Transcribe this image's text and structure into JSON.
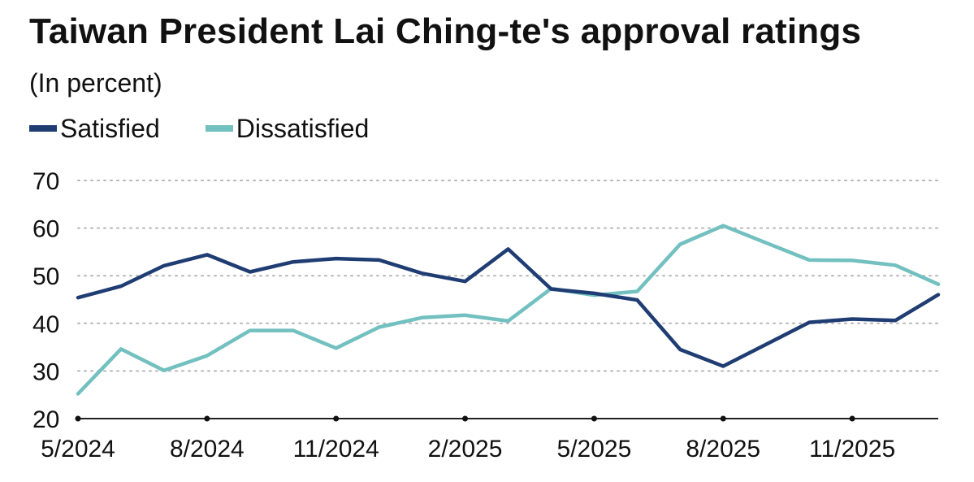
{
  "chart_data": {
    "type": "line",
    "title": "Taiwan President Lai Ching-te's approval ratings",
    "subtitle": "(In percent)",
    "xlabel": "",
    "ylabel": "",
    "ylim": [
      20,
      70
    ],
    "yticks": [
      20,
      30,
      40,
      50,
      60,
      70
    ],
    "grid": true,
    "legend": "top-left",
    "x": [
      "5/2024",
      "6/2024",
      "7/2024",
      "8/2024",
      "9/2024",
      "10/2024",
      "11/2024",
      "12/2024",
      "1/2025",
      "2/2025",
      "3/2025",
      "4/2025",
      "5/2025",
      "6/2025",
      "7/2025",
      "8/2025",
      "9/2025",
      "10/2025",
      "11/2025",
      "12/2025",
      "1/2026"
    ],
    "xtick_labels": [
      "5/2024",
      "8/2024",
      "11/2024",
      "2/2025",
      "5/2025",
      "8/2025",
      "11/2025"
    ],
    "series": [
      {
        "name": "Satisfied",
        "color": "#1f3d73",
        "values": [
          45.4,
          47.8,
          52.1,
          54.4,
          50.8,
          52.9,
          53.6,
          53.3,
          50.5,
          48.8,
          55.6,
          47.2,
          46.3,
          44.9,
          34.5,
          31.0,
          35.6,
          40.2,
          40.9,
          40.6,
          46.0
        ]
      },
      {
        "name": "Dissatisfied",
        "color": "#72c0bf",
        "values": [
          25.2,
          34.6,
          30.1,
          33.2,
          38.5,
          38.5,
          34.8,
          39.2,
          41.2,
          41.7,
          40.5,
          47.3,
          45.9,
          46.7,
          56.6,
          60.5,
          56.9,
          53.3,
          53.2,
          52.2,
          48.2
        ]
      }
    ]
  }
}
